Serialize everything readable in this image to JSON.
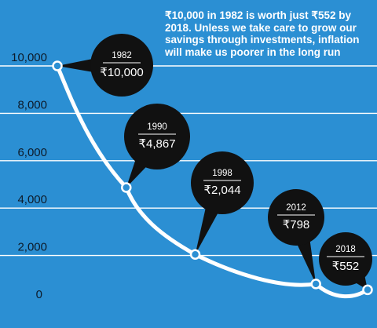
{
  "note": "₹10,000 in 1982 is worth just ₹552 by 2018. Unless we take care to grow our savings through investments, inflation will make us poorer in the long run",
  "colors": {
    "background": "#2b8fd3",
    "line": "#ffffff",
    "bubble": "#111111",
    "label": "#0d1b2a"
  },
  "chart_data": {
    "type": "line",
    "x": [
      1982,
      1990,
      1998,
      2012,
      2018
    ],
    "values": [
      10000,
      4867,
      2044,
      798,
      552
    ],
    "point_labels": [
      {
        "year": "1982",
        "value": "₹10,000"
      },
      {
        "year": "1990",
        "value": "₹4,867"
      },
      {
        "year": "1998",
        "value": "₹2,044"
      },
      {
        "year": "2012",
        "value": "₹798"
      },
      {
        "year": "2018",
        "value": "₹552"
      }
    ],
    "yticks": [
      "0",
      "2,000",
      "4,000",
      "6,000",
      "8,000",
      "10,000"
    ],
    "ylim": [
      0,
      10000
    ],
    "grid": true
  }
}
